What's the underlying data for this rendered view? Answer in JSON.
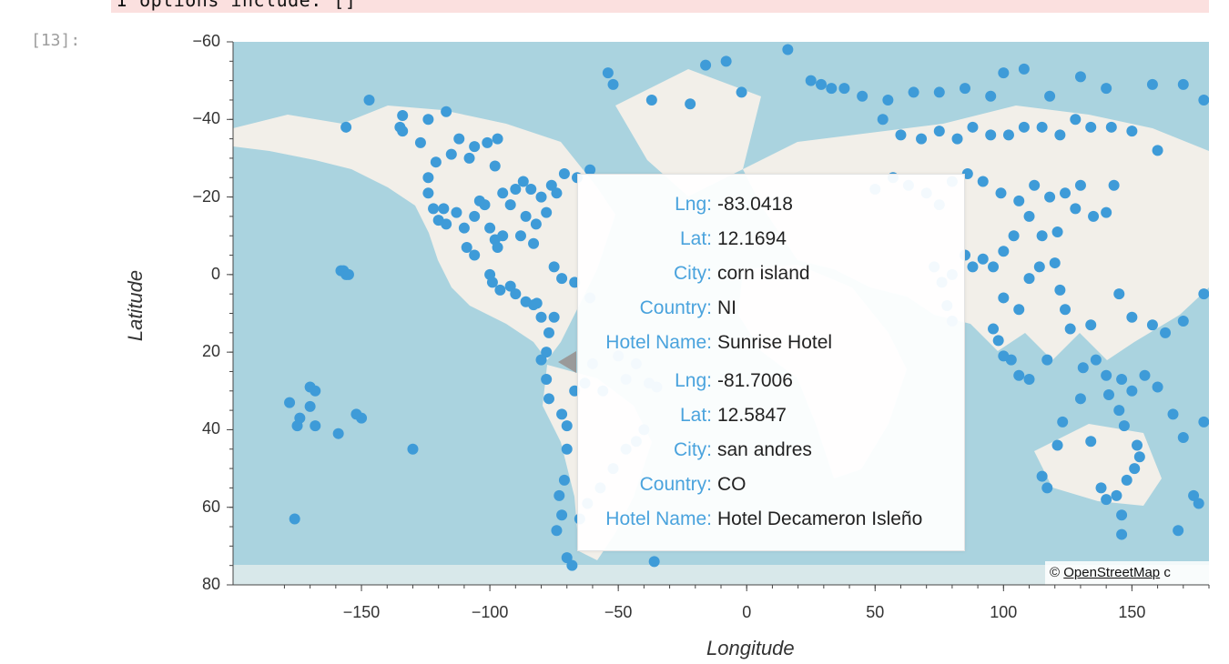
{
  "cell": {
    "stderr_text": "I options include: []",
    "prompt": "[13]:"
  },
  "map": {
    "ylabel": "Latitude",
    "xlabel": "Longitude",
    "y_ticks": [
      "80",
      "60",
      "40",
      "20",
      "0",
      "−20",
      "−40",
      "−60"
    ],
    "x_ticks": [
      "−150",
      "−100",
      "−50",
      "0",
      "50",
      "100",
      "150"
    ],
    "attribution_prefix": "©",
    "attribution_link": "OpenStreetMap",
    "attribution_suffix": "c",
    "colors": {
      "ocean": "#aad3df",
      "land": "#f2efe9",
      "point": "#3e9bd8",
      "tooltip_key": "#4aa3dd"
    }
  },
  "tooltip": {
    "keys": {
      "lng": "Lng:",
      "lat": "Lat:",
      "city": "City:",
      "country": "Country:",
      "hotel": "Hotel Name:"
    },
    "entries": [
      {
        "lng": "-83.0418",
        "lat": "12.1694",
        "city": "corn island",
        "country": "NI",
        "hotel": "Sunrise Hotel"
      },
      {
        "lng": "-81.7006",
        "lat": "12.5847",
        "city": "san andres",
        "country": "CO",
        "hotel": "Hotel Decameron Isleño"
      }
    ]
  },
  "chart_data": {
    "type": "scatter",
    "xlabel": "Longitude",
    "ylabel": "Latitude",
    "xlim": [
      -200,
      180
    ],
    "ylim": [
      -60,
      80
    ],
    "x_ticks": [
      -150,
      -100,
      -50,
      0,
      50,
      100,
      150
    ],
    "y_ticks": [
      -60,
      -40,
      -20,
      0,
      20,
      40,
      60,
      80
    ],
    "points": [
      [
        -178,
        -13
      ],
      [
        -175,
        -19
      ],
      [
        -174,
        -17
      ],
      [
        -170,
        -9
      ],
      [
        -168,
        -10
      ],
      [
        -168,
        -19
      ],
      [
        -170,
        -14
      ],
      [
        -159,
        -21
      ],
      [
        -150,
        -17
      ],
      [
        -152,
        -16
      ],
      [
        -130,
        -25
      ],
      [
        -176,
        -43
      ],
      [
        -158,
        21
      ],
      [
        -157,
        21
      ],
      [
        -156,
        20
      ],
      [
        -155,
        20
      ],
      [
        -156,
        58
      ],
      [
        -147,
        65
      ],
      [
        -135,
        58
      ],
      [
        -134,
        61
      ],
      [
        -134,
        57
      ],
      [
        -127,
        54
      ],
      [
        -124,
        60
      ],
      [
        -117,
        62
      ],
      [
        -112,
        55
      ],
      [
        -106,
        53
      ],
      [
        -101,
        54
      ],
      [
        -97,
        55
      ],
      [
        -98,
        48
      ],
      [
        -108,
        50
      ],
      [
        -115,
        51
      ],
      [
        -121,
        49
      ],
      [
        -124,
        45
      ],
      [
        -124,
        41
      ],
      [
        -122,
        37
      ],
      [
        -120,
        34
      ],
      [
        -118,
        37
      ],
      [
        -117,
        33
      ],
      [
        -113,
        36
      ],
      [
        -110,
        32
      ],
      [
        -106,
        35
      ],
      [
        -104,
        39
      ],
      [
        -100,
        32
      ],
      [
        -98,
        29
      ],
      [
        -97,
        27
      ],
      [
        -102,
        38
      ],
      [
        -95,
        41
      ],
      [
        -92,
        38
      ],
      [
        -90,
        42
      ],
      [
        -87,
        44
      ],
      [
        -84,
        42
      ],
      [
        -86,
        35
      ],
      [
        -82,
        33
      ],
      [
        -80,
        40
      ],
      [
        -78,
        36
      ],
      [
        -76,
        43
      ],
      [
        -74,
        41
      ],
      [
        -71,
        46
      ],
      [
        -66,
        45
      ],
      [
        -61,
        47
      ],
      [
        -88,
        30
      ],
      [
        -83,
        28
      ],
      [
        -95,
        30
      ],
      [
        -106,
        25
      ],
      [
        -109,
        27
      ],
      [
        -100,
        20
      ],
      [
        -99,
        18
      ],
      [
        -96,
        16
      ],
      [
        -92,
        17
      ],
      [
        -90,
        15
      ],
      [
        -86,
        13
      ],
      [
        -83,
        12.2
      ],
      [
        -81.7,
        12.6
      ],
      [
        -80,
        9
      ],
      [
        -77,
        5
      ],
      [
        -75,
        9
      ],
      [
        -78,
        0
      ],
      [
        -80,
        -2
      ],
      [
        -78,
        -7
      ],
      [
        -77,
        -12
      ],
      [
        -72,
        -16
      ],
      [
        -70,
        -19
      ],
      [
        -70,
        -25
      ],
      [
        -71,
        -33
      ],
      [
        -73,
        -37
      ],
      [
        -72,
        -42
      ],
      [
        -74,
        -46
      ],
      [
        -70,
        -53
      ],
      [
        -68,
        -55
      ],
      [
        -67,
        -10
      ],
      [
        -63,
        -8
      ],
      [
        -60,
        -3
      ],
      [
        -56,
        -10
      ],
      [
        -50,
        -1
      ],
      [
        -47,
        -7
      ],
      [
        -43,
        -3
      ],
      [
        -38,
        -8
      ],
      [
        -35,
        -9
      ],
      [
        -40,
        -20
      ],
      [
        -43,
        -23
      ],
      [
        -47,
        -25
      ],
      [
        -52,
        -30
      ],
      [
        -57,
        -35
      ],
      [
        -62,
        -39
      ],
      [
        -65,
        -43
      ],
      [
        -36,
        -54
      ],
      [
        -67,
        18
      ],
      [
        -61,
        14
      ],
      [
        -72,
        19
      ],
      [
        -75,
        22
      ],
      [
        -52,
        69
      ],
      [
        -54,
        72
      ],
      [
        -37,
        65
      ],
      [
        -22,
        64
      ],
      [
        -16,
        74
      ],
      [
        -8,
        75
      ],
      [
        -2,
        67
      ],
      [
        16,
        78
      ],
      [
        25,
        70
      ],
      [
        29,
        69
      ],
      [
        33,
        68
      ],
      [
        38,
        68
      ],
      [
        45,
        66
      ],
      [
        55,
        65
      ],
      [
        65,
        67
      ],
      [
        75,
        67
      ],
      [
        85,
        68
      ],
      [
        95,
        66
      ],
      [
        100,
        72
      ],
      [
        108,
        73
      ],
      [
        118,
        66
      ],
      [
        130,
        71
      ],
      [
        140,
        68
      ],
      [
        158,
        69
      ],
      [
        170,
        69
      ],
      [
        178,
        65
      ],
      [
        53,
        60
      ],
      [
        60,
        56
      ],
      [
        68,
        55
      ],
      [
        75,
        57
      ],
      [
        82,
        55
      ],
      [
        88,
        58
      ],
      [
        95,
        56
      ],
      [
        102,
        56
      ],
      [
        108,
        58
      ],
      [
        115,
        58
      ],
      [
        122,
        56
      ],
      [
        128,
        60
      ],
      [
        134,
        58
      ],
      [
        142,
        58
      ],
      [
        150,
        57
      ],
      [
        160,
        52
      ],
      [
        50,
        42
      ],
      [
        57,
        45
      ],
      [
        63,
        43
      ],
      [
        70,
        41
      ],
      [
        75,
        38
      ],
      [
        80,
        44
      ],
      [
        86,
        46
      ],
      [
        92,
        44
      ],
      [
        99,
        41
      ],
      [
        106,
        39
      ],
      [
        112,
        43
      ],
      [
        118,
        40
      ],
      [
        124,
        41
      ],
      [
        130,
        43
      ],
      [
        135,
        35
      ],
      [
        140,
        36
      ],
      [
        143,
        43
      ],
      [
        128,
        37
      ],
      [
        121,
        31
      ],
      [
        115,
        30
      ],
      [
        110,
        35
      ],
      [
        104,
        30
      ],
      [
        100,
        26
      ],
      [
        96,
        22
      ],
      [
        92,
        24
      ],
      [
        88,
        22
      ],
      [
        85,
        25
      ],
      [
        80,
        20
      ],
      [
        76,
        18
      ],
      [
        73,
        22
      ],
      [
        78,
        12
      ],
      [
        80,
        8
      ],
      [
        96,
        6
      ],
      [
        100,
        14
      ],
      [
        106,
        11
      ],
      [
        110,
        19
      ],
      [
        114,
        22
      ],
      [
        120,
        23
      ],
      [
        122,
        16
      ],
      [
        124,
        11
      ],
      [
        126,
        6
      ],
      [
        117,
        -2
      ],
      [
        110,
        -7
      ],
      [
        106,
        -6
      ],
      [
        103,
        -2
      ],
      [
        98,
        3
      ],
      [
        100,
        -1
      ],
      [
        131,
        -4
      ],
      [
        136,
        -2
      ],
      [
        140,
        -6
      ],
      [
        146,
        -7
      ],
      [
        150,
        -10
      ],
      [
        155,
        -6
      ],
      [
        160,
        -9
      ],
      [
        166,
        -16
      ],
      [
        170,
        -22
      ],
      [
        178,
        -18
      ],
      [
        115,
        -32
      ],
      [
        117,
        -35
      ],
      [
        121,
        -24
      ],
      [
        123,
        -18
      ],
      [
        130,
        -12
      ],
      [
        134,
        -23
      ],
      [
        138,
        -35
      ],
      [
        140,
        -38
      ],
      [
        144,
        -37
      ],
      [
        146,
        -42
      ],
      [
        148,
        -33
      ],
      [
        151,
        -30
      ],
      [
        153,
        -27
      ],
      [
        152,
        -24
      ],
      [
        147,
        -19
      ],
      [
        145,
        -15
      ],
      [
        141,
        -11
      ],
      [
        146,
        -47
      ],
      [
        168,
        -46
      ],
      [
        174,
        -37
      ],
      [
        176,
        -39
      ],
      [
        178,
        15
      ],
      [
        170,
        8
      ],
      [
        163,
        5
      ],
      [
        158,
        7
      ],
      [
        150,
        9
      ],
      [
        145,
        15
      ],
      [
        134,
        7
      ]
    ]
  }
}
